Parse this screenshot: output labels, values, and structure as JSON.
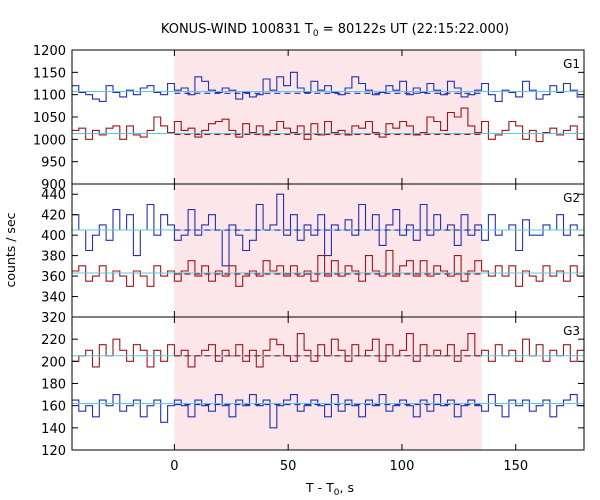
{
  "chart_data": {
    "type": "line",
    "title": "KONUS-WIND 100831 T",
    "title_sub": "0",
    "title_rest": " = 80122s UT (22:15:22.000)",
    "xlabel": "T - T",
    "xlabel_sub": "0",
    "xlabel_rest": ", s",
    "ylabel": "counts / sec",
    "xlim": [
      -45,
      180
    ],
    "x_ticks": [
      0,
      50,
      100,
      150
    ],
    "highlight_interval": [
      0,
      135
    ],
    "bin_width": 3,
    "colors": {
      "blue": "#2230b0",
      "red": "#a01418",
      "cyan": "#5ac8e8",
      "highlight": "#fde6ea"
    },
    "panels": [
      {
        "label": "G1",
        "ylim": [
          900,
          1200
        ],
        "y_ticks": [
          900,
          950,
          1000,
          1050,
          1100,
          1150,
          1200
        ],
        "series": [
          {
            "color": "blue",
            "mean": 1107,
            "post_mean": 1103,
            "values": [
              1120,
              1105,
              1100,
              1090,
              1085,
              1120,
              1105,
              1095,
              1110,
              1100,
              1115,
              1120,
              1105,
              1100,
              1125,
              1110,
              1115,
              1100,
              1140,
              1130,
              1110,
              1105,
              1115,
              1110,
              1090,
              1105,
              1095,
              1100,
              1135,
              1110,
              1140,
              1120,
              1150,
              1115,
              1105,
              1130,
              1110,
              1120,
              1105,
              1100,
              1115,
              1140,
              1125,
              1110,
              1100,
              1105,
              1120,
              1110,
              1130,
              1100,
              1115,
              1105,
              1125,
              1110,
              1100,
              1130,
              1115,
              1095,
              1100,
              1110,
              1125,
              1100,
              1085,
              1110,
              1105,
              1095,
              1130,
              1110,
              1090,
              1100,
              1120,
              1105,
              1125,
              1110,
              1095,
              1105
            ]
          },
          {
            "color": "red",
            "mean": 1013,
            "post_mean": 1011,
            "values": [
              1020,
              1025,
              1000,
              1020,
              1010,
              1025,
              1030,
              1000,
              1030,
              1010,
              1005,
              1020,
              1050,
              1030,
              1015,
              1040,
              1020,
              1025,
              1005,
              1020,
              1035,
              1040,
              1045,
              1020,
              1005,
              1035,
              1015,
              1030,
              1010,
              1020,
              1040,
              1025,
              1015,
              1030,
              1000,
              1035,
              1010,
              1040,
              1015,
              1020,
              1010,
              1030,
              1025,
              1040,
              1015,
              1005,
              1035,
              1025,
              1040,
              1030,
              1010,
              1015,
              1050,
              1040,
              1020,
              1060,
              1050,
              1070,
              1030,
              1015,
              1040,
              1000,
              1010,
              1020,
              1040,
              1030,
              1000,
              1020,
              995,
              1015,
              1025,
              1010,
              1020,
              1030,
              1000,
              1015
            ]
          }
        ]
      },
      {
        "label": "G2",
        "ylim": [
          320,
          450
        ],
        "y_ticks": [
          320,
          340,
          360,
          380,
          400,
          420,
          440
        ],
        "series": [
          {
            "color": "blue",
            "mean": 405,
            "post_mean": 405,
            "values": [
              420,
              405,
              385,
              400,
              410,
              395,
              425,
              405,
              420,
              380,
              405,
              430,
              400,
              420,
              410,
              395,
              400,
              425,
              400,
              410,
              420,
              405,
              370,
              410,
              400,
              385,
              395,
              430,
              405,
              410,
              440,
              400,
              420,
              395,
              410,
              400,
              420,
              380,
              410,
              405,
              415,
              400,
              430,
              405,
              420,
              390,
              410,
              425,
              400,
              410,
              395,
              430,
              400,
              420,
              405,
              410,
              390,
              420,
              400,
              410,
              395,
              420,
              400,
              405,
              410,
              385,
              415,
              400,
              400,
              410,
              405,
              420,
              400,
              410,
              405,
              410
            ]
          },
          {
            "color": "red",
            "mean": 363,
            "post_mean": 362,
            "values": [
              365,
              370,
              355,
              360,
              370,
              355,
              365,
              360,
              350,
              365,
              360,
              350,
              370,
              360,
              365,
              355,
              365,
              375,
              360,
              370,
              355,
              365,
              360,
              370,
              350,
              360,
              365,
              360,
              375,
              365,
              370,
              360,
              370,
              360,
              365,
              355,
              380,
              360,
              375,
              360,
              370,
              365,
              355,
              380,
              365,
              360,
              385,
              360,
              370,
              375,
              360,
              375,
              360,
              370,
              365,
              360,
              380,
              355,
              365,
              375,
              365,
              360,
              370,
              360,
              370,
              350,
              365,
              360,
              355,
              370,
              360,
              365,
              355,
              370,
              360,
              370
            ]
          }
        ]
      },
      {
        "label": "G3",
        "ylim": [
          120,
          240
        ],
        "y_ticks": [
          120,
          140,
          160,
          180,
          200,
          220
        ],
        "series": [
          {
            "color": "red",
            "mean": 205,
            "post_mean": 205,
            "values": [
              200,
              205,
              210,
              195,
              215,
              205,
              220,
              210,
              200,
              215,
              210,
              195,
              210,
              200,
              215,
              205,
              210,
              195,
              205,
              210,
              215,
              200,
              210,
              205,
              215,
              200,
              210,
              195,
              210,
              220,
              215,
              205,
              200,
              225,
              210,
              200,
              215,
              205,
              220,
              210,
              200,
              215,
              205,
              210,
              220,
              200,
              215,
              205,
              210,
              225,
              200,
              215,
              205,
              210,
              205,
              215,
              200,
              210,
              225,
              205,
              210,
              200,
              215,
              205,
              210,
              200,
              220,
              205,
              215,
              200,
              210,
              205,
              215,
              200,
              210,
              220
            ]
          },
          {
            "color": "blue",
            "mean": 162,
            "post_mean": 161,
            "values": [
              165,
              155,
              160,
              150,
              165,
              160,
              170,
              155,
              160,
              165,
              150,
              160,
              165,
              145,
              160,
              165,
              160,
              150,
              165,
              160,
              155,
              170,
              160,
              150,
              165,
              160,
              170,
              160,
              165,
              140,
              160,
              165,
              170,
              155,
              160,
              165,
              160,
              150,
              170,
              155,
              165,
              160,
              150,
              165,
              160,
              170,
              155,
              160,
              165,
              160,
              150,
              165,
              155,
              170,
              160,
              165,
              150,
              160,
              165,
              160,
              155,
              170,
              160,
              150,
              165,
              160,
              165,
              155,
              160,
              165,
              150,
              160,
              165,
              170,
              160,
              165
            ]
          }
        ]
      }
    ]
  }
}
